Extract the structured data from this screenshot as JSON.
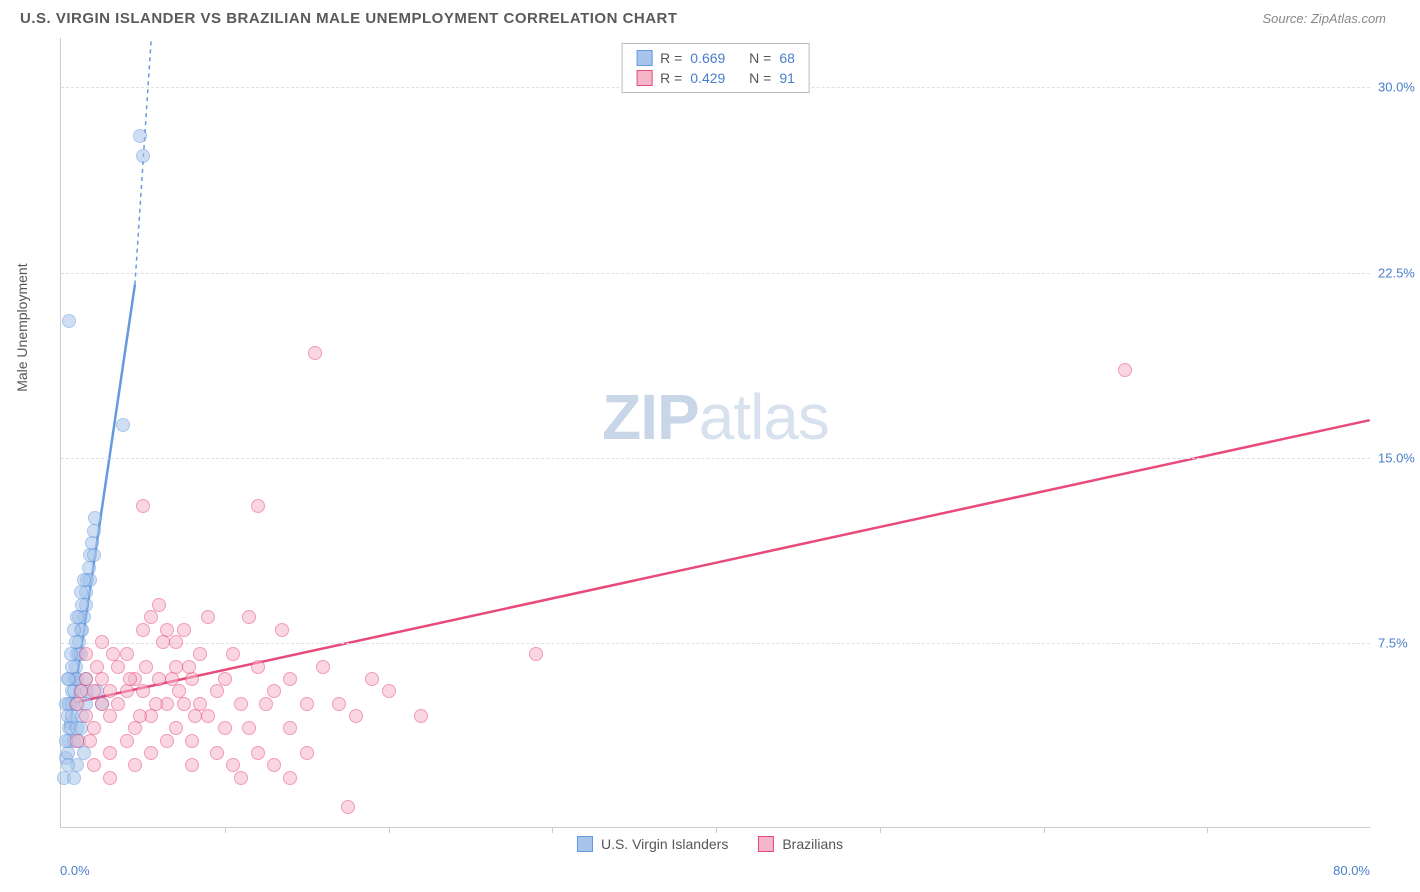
{
  "header": {
    "title": "U.S. VIRGIN ISLANDER VS BRAZILIAN MALE UNEMPLOYMENT CORRELATION CHART",
    "source_label": "Source: ZipAtlas.com"
  },
  "chart": {
    "type": "scatter",
    "y_axis_label": "Male Unemployment",
    "x_min": 0.0,
    "x_max": 80.0,
    "y_min": 0.0,
    "y_max": 32.0,
    "y_ticks": [
      7.5,
      15.0,
      22.5,
      30.0
    ],
    "y_tick_labels": [
      "7.5%",
      "15.0%",
      "22.5%",
      "30.0%"
    ],
    "x_label_min": "0.0%",
    "x_label_max": "80.0%",
    "x_tick_positions": [
      10,
      20,
      30,
      40,
      50,
      60,
      70
    ],
    "grid_color": "#e0e0e0",
    "axis_color": "#cccccc",
    "tick_label_color": "#4a7ec8",
    "marker_radius": 7,
    "marker_opacity": 0.55,
    "watermark": {
      "bold": "ZIP",
      "light": "atlas",
      "color": "#c8d6e8"
    },
    "series": [
      {
        "name": "U.S. Virgin Islanders",
        "color": "#6699dd",
        "fill": "#a7c5eb",
        "stroke": "#6699dd",
        "trend": {
          "x1": 0.5,
          "y1": 4.0,
          "x2": 5.5,
          "y2": 32.0,
          "dash_after_x": 4.5,
          "dash_after_y": 22.0,
          "width": 2.5
        },
        "stats": {
          "R": "0.669",
          "N": "68"
        },
        "points": [
          [
            0.2,
            2.0
          ],
          [
            0.3,
            2.8
          ],
          [
            0.4,
            3.0
          ],
          [
            0.5,
            3.5
          ],
          [
            0.5,
            4.0
          ],
          [
            0.6,
            4.2
          ],
          [
            0.6,
            5.0
          ],
          [
            0.7,
            5.0
          ],
          [
            0.7,
            5.5
          ],
          [
            0.8,
            5.5
          ],
          [
            0.8,
            6.0
          ],
          [
            0.9,
            6.0
          ],
          [
            0.9,
            6.5
          ],
          [
            1.0,
            7.0
          ],
          [
            1.0,
            6.0
          ],
          [
            1.1,
            7.0
          ],
          [
            1.1,
            7.5
          ],
          [
            1.2,
            8.0
          ],
          [
            1.2,
            7.0
          ],
          [
            1.3,
            5.5
          ],
          [
            1.3,
            8.0
          ],
          [
            1.4,
            8.5
          ],
          [
            1.5,
            9.0
          ],
          [
            1.5,
            9.5
          ],
          [
            1.6,
            10.0
          ],
          [
            1.7,
            10.5
          ],
          [
            1.8,
            11.0
          ],
          [
            1.8,
            10.0
          ],
          [
            1.9,
            11.5
          ],
          [
            2.0,
            12.0
          ],
          [
            2.0,
            11.0
          ],
          [
            2.1,
            12.5
          ],
          [
            0.3,
            5.0
          ],
          [
            0.4,
            4.5
          ],
          [
            0.5,
            5.0
          ],
          [
            0.6,
            4.0
          ],
          [
            0.7,
            4.5
          ],
          [
            0.8,
            3.5
          ],
          [
            0.9,
            5.0
          ],
          [
            1.0,
            4.0
          ],
          [
            1.1,
            3.5
          ],
          [
            1.2,
            4.0
          ],
          [
            1.4,
            3.0
          ],
          [
            1.3,
            4.5
          ],
          [
            1.5,
            5.0
          ],
          [
            1.0,
            2.5
          ],
          [
            0.8,
            2.0
          ],
          [
            0.5,
            6.0
          ],
          [
            0.7,
            6.5
          ],
          [
            0.9,
            7.5
          ],
          [
            1.1,
            8.5
          ],
          [
            1.3,
            9.0
          ],
          [
            0.4,
            6.0
          ],
          [
            0.6,
            7.0
          ],
          [
            0.8,
            8.0
          ],
          [
            1.0,
            8.5
          ],
          [
            1.2,
            9.5
          ],
          [
            1.4,
            10.0
          ],
          [
            0.3,
            3.5
          ],
          [
            0.5,
            20.5
          ],
          [
            2.5,
            5.0
          ],
          [
            3.8,
            16.3
          ],
          [
            4.8,
            28.0
          ],
          [
            5.0,
            27.2
          ],
          [
            1.6,
            5.5
          ],
          [
            1.5,
            6.0
          ],
          [
            0.4,
            2.5
          ],
          [
            2.2,
            5.5
          ]
        ]
      },
      {
        "name": "Brazilians",
        "color": "#e84a7a",
        "fill": "#f5b6ca",
        "stroke": "#e84a7a",
        "trend": {
          "x1": 0.5,
          "y1": 5.0,
          "x2": 80.0,
          "y2": 16.5,
          "width": 2.5
        },
        "stats": {
          "R": "0.429",
          "N": "91"
        },
        "points": [
          [
            1.0,
            5.0
          ],
          [
            1.5,
            4.5
          ],
          [
            2.0,
            5.5
          ],
          [
            2.0,
            4.0
          ],
          [
            2.5,
            6.0
          ],
          [
            2.5,
            5.0
          ],
          [
            3.0,
            5.5
          ],
          [
            3.0,
            4.5
          ],
          [
            3.5,
            5.0
          ],
          [
            3.5,
            6.5
          ],
          [
            4.0,
            7.0
          ],
          [
            4.0,
            5.5
          ],
          [
            4.5,
            6.0
          ],
          [
            4.5,
            4.0
          ],
          [
            5.0,
            5.5
          ],
          [
            5.0,
            8.0
          ],
          [
            5.0,
            13.0
          ],
          [
            5.5,
            8.5
          ],
          [
            5.5,
            4.5
          ],
          [
            6.0,
            6.0
          ],
          [
            6.0,
            9.0
          ],
          [
            6.5,
            5.0
          ],
          [
            6.5,
            8.0
          ],
          [
            7.0,
            6.5
          ],
          [
            7.0,
            4.0
          ],
          [
            7.0,
            7.5
          ],
          [
            7.5,
            5.0
          ],
          [
            7.5,
            8.0
          ],
          [
            8.0,
            6.0
          ],
          [
            8.0,
            3.5
          ],
          [
            8.5,
            7.0
          ],
          [
            8.5,
            5.0
          ],
          [
            9.0,
            4.5
          ],
          [
            9.0,
            8.5
          ],
          [
            9.5,
            5.5
          ],
          [
            9.5,
            3.0
          ],
          [
            10.0,
            6.0
          ],
          [
            10.0,
            4.0
          ],
          [
            10.5,
            2.5
          ],
          [
            10.5,
            7.0
          ],
          [
            11.0,
            5.0
          ],
          [
            11.5,
            4.0
          ],
          [
            11.5,
            8.5
          ],
          [
            12.0,
            6.5
          ],
          [
            12.0,
            3.0
          ],
          [
            12.0,
            13.0
          ],
          [
            12.5,
            5.0
          ],
          [
            13.0,
            5.5
          ],
          [
            13.0,
            2.5
          ],
          [
            13.5,
            8.0
          ],
          [
            14.0,
            4.0
          ],
          [
            14.0,
            6.0
          ],
          [
            15.0,
            5.0
          ],
          [
            15.0,
            3.0
          ],
          [
            16.0,
            6.5
          ],
          [
            15.5,
            19.2
          ],
          [
            17.0,
            5.0
          ],
          [
            18.0,
            4.5
          ],
          [
            19.0,
            6.0
          ],
          [
            20.0,
            5.5
          ],
          [
            22.0,
            4.5
          ],
          [
            29.0,
            7.0
          ],
          [
            17.5,
            0.8
          ],
          [
            2.0,
            2.5
          ],
          [
            3.0,
            3.0
          ],
          [
            4.0,
            3.5
          ],
          [
            1.5,
            6.0
          ],
          [
            2.5,
            7.5
          ],
          [
            1.0,
            3.5
          ],
          [
            1.8,
            3.5
          ],
          [
            2.2,
            6.5
          ],
          [
            3.2,
            7.0
          ],
          [
            4.2,
            6.0
          ],
          [
            4.8,
            4.5
          ],
          [
            5.2,
            6.5
          ],
          [
            5.8,
            5.0
          ],
          [
            6.2,
            7.5
          ],
          [
            6.8,
            6.0
          ],
          [
            7.2,
            5.5
          ],
          [
            7.8,
            6.5
          ],
          [
            8.2,
            4.5
          ],
          [
            3.0,
            2.0
          ],
          [
            4.5,
            2.5
          ],
          [
            5.5,
            3.0
          ],
          [
            6.5,
            3.5
          ],
          [
            8.0,
            2.5
          ],
          [
            11.0,
            2.0
          ],
          [
            14.0,
            2.0
          ],
          [
            65.0,
            18.5
          ],
          [
            1.2,
            5.5
          ],
          [
            1.5,
            7.0
          ]
        ]
      }
    ]
  },
  "legend_top": {
    "r_label": "R =",
    "n_label": "N ="
  },
  "legend_bottom": {
    "items": [
      "U.S. Virgin Islanders",
      "Brazilians"
    ]
  }
}
